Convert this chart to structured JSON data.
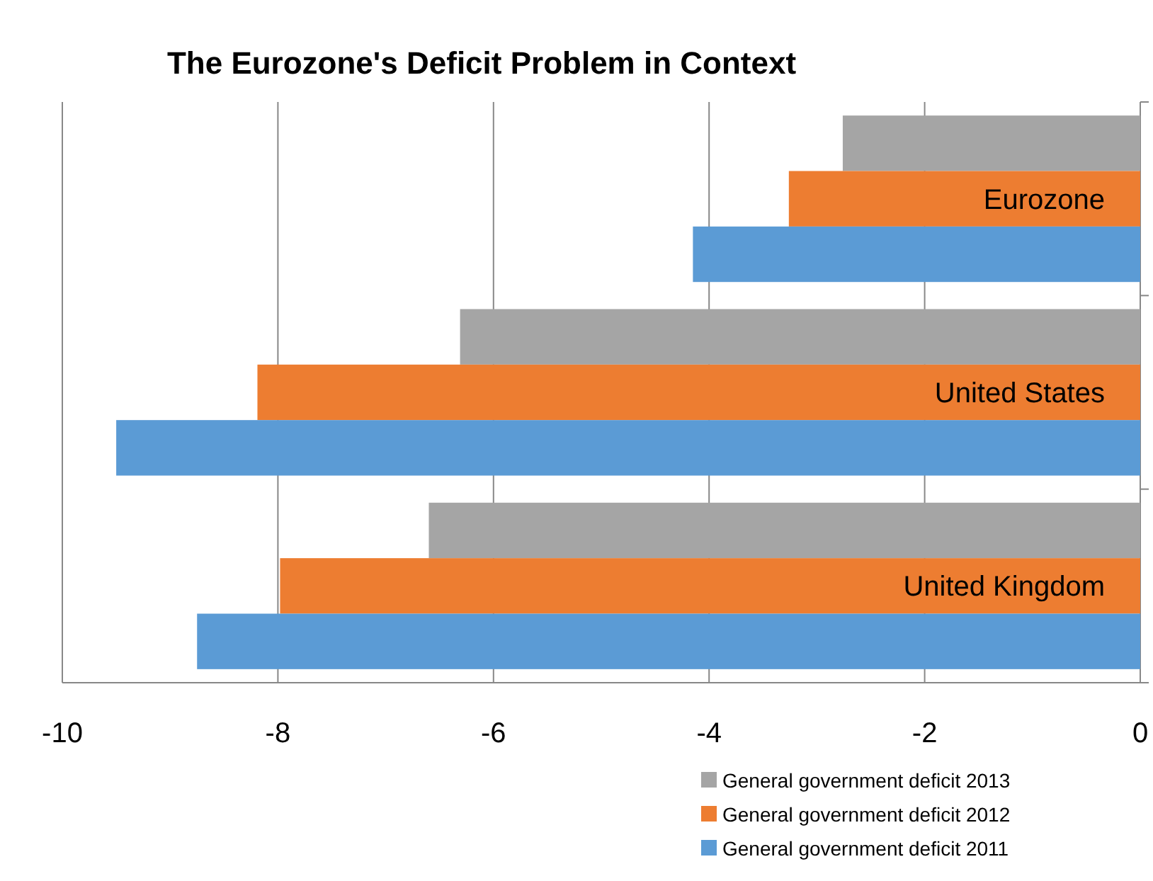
{
  "chart_data": {
    "type": "bar",
    "orientation": "horizontal",
    "title": "The Eurozone's Deficit Problem in Context",
    "categories": [
      "Eurozone",
      "United States",
      "United Kingdom"
    ],
    "series": [
      {
        "name": "General government deficit 2013",
        "color": "#a5a5a5",
        "values": [
          -2.76,
          -6.31,
          -6.6
        ]
      },
      {
        "name": "General government deficit 2012",
        "color": "#ed7d31",
        "values": [
          -3.26,
          -8.19,
          -7.98
        ]
      },
      {
        "name": "General government deficit 2011",
        "color": "#5b9bd5",
        "values": [
          -4.15,
          -9.5,
          -8.75
        ]
      }
    ],
    "xlim": [
      -10,
      0
    ],
    "xticks": [
      -10,
      -8,
      -6,
      -4,
      -2,
      0
    ],
    "grid": "x",
    "legend": "bottom right"
  }
}
